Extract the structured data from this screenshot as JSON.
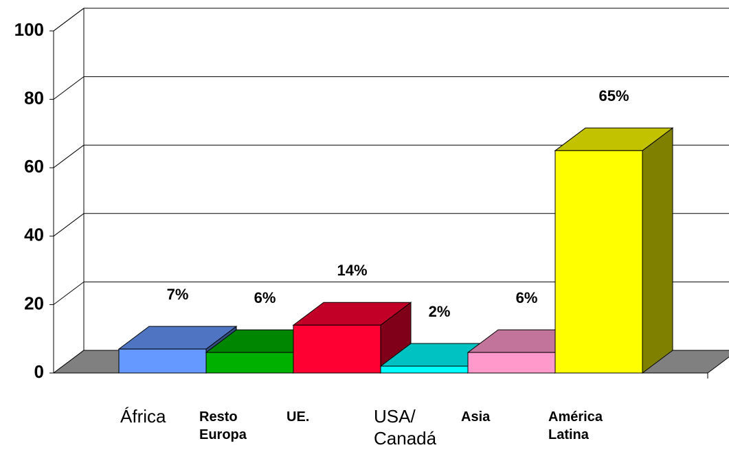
{
  "chart_data": {
    "type": "bar3d",
    "categories": [
      "África",
      "Resto Europa",
      "UE.",
      "USA/ Canadá",
      "Asia",
      "América Latina"
    ],
    "values": [
      7,
      6,
      14,
      2,
      6,
      65
    ],
    "value_labels": [
      "7%",
      "6%",
      "14%",
      "2%",
      "6%",
      "65%"
    ],
    "colors": [
      "#6699ff",
      "#00b000",
      "#ff0033",
      "#00ffff",
      "#ff99cc",
      "#ffff00"
    ],
    "ylim": [
      0,
      100
    ],
    "yticks": [
      0,
      20,
      40,
      60,
      80,
      100
    ],
    "grid": true
  }
}
